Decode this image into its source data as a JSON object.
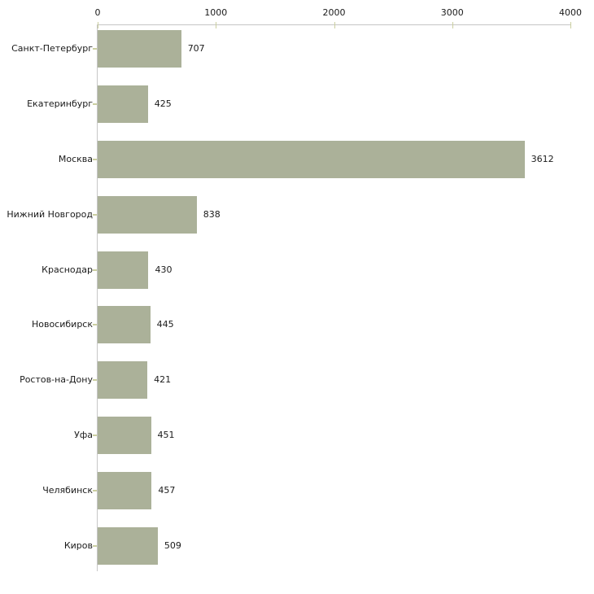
{
  "chart_data": {
    "type": "bar",
    "orientation": "horizontal",
    "categories": [
      "Санкт-Петербург",
      "Екатеринбург",
      "Москва",
      "Нижний Новгород",
      "Краснодар",
      "Новосибирск",
      "Ростов-на-Дону",
      "Уфа",
      "Челябинск",
      "Киров"
    ],
    "values": [
      707,
      425,
      3612,
      838,
      430,
      445,
      421,
      451,
      457,
      509
    ],
    "value_labels": [
      "707",
      "425",
      "3612",
      "838",
      "430",
      "445",
      "421",
      "451",
      "457",
      "509"
    ],
    "x_ticks": [
      0,
      1000,
      2000,
      3000,
      4000
    ],
    "x_tick_labels": [
      "0",
      "1000",
      "2000",
      "3000",
      "4000"
    ],
    "xlim": [
      0,
      4000
    ],
    "axis_position": "top",
    "grid": false,
    "legend": "none",
    "colors": {
      "bar_fill": "#ABB199",
      "axis_line": "#C6C6C6",
      "tick_mark": "#CBCFA0",
      "label_text": "#1A1A1A",
      "background": "#FFFFFF"
    }
  }
}
